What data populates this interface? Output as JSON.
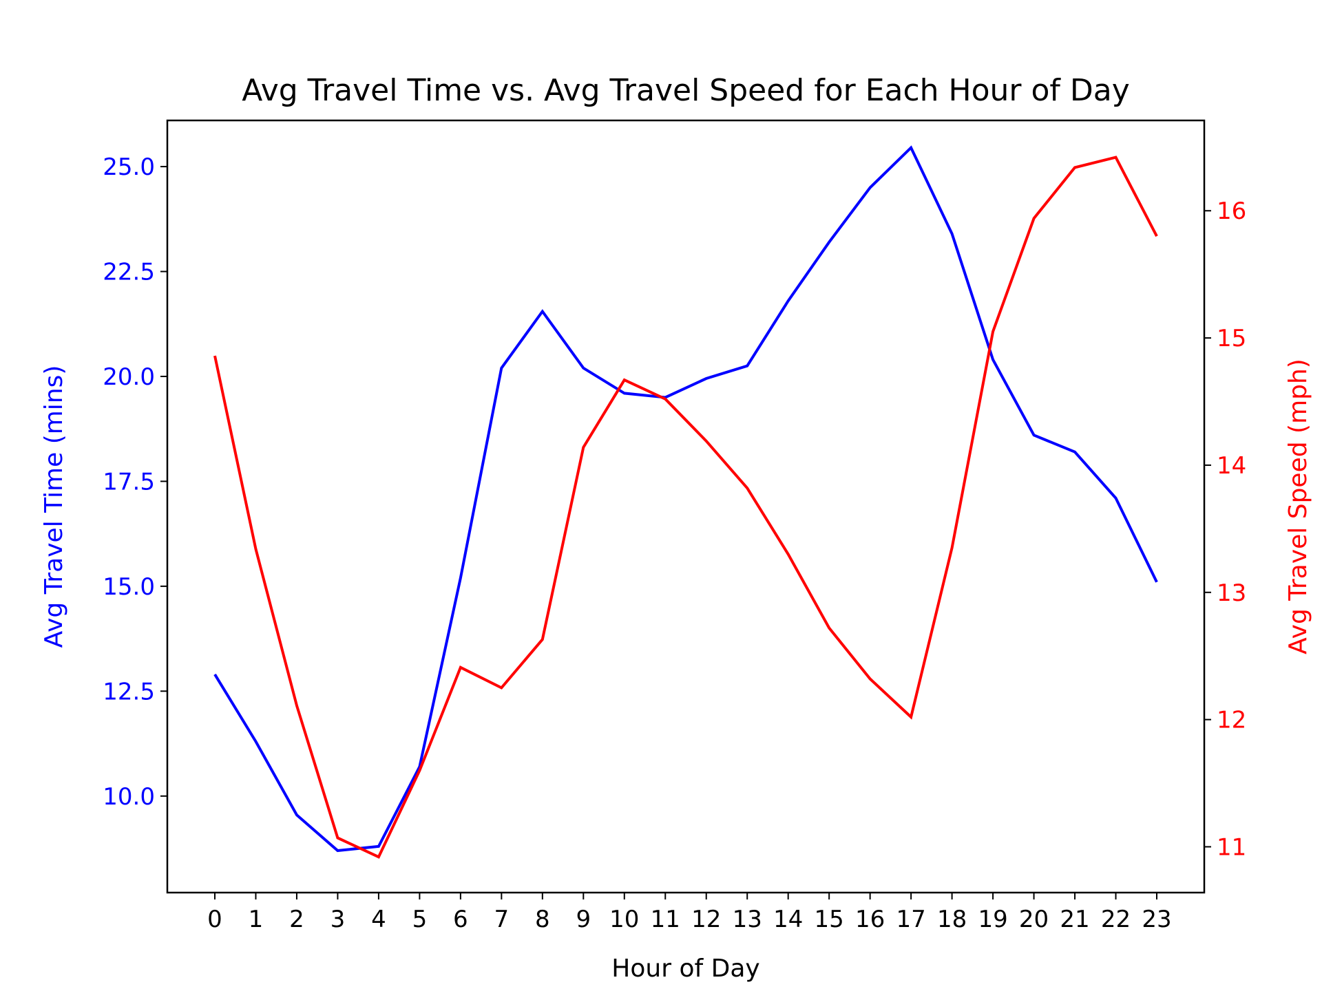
{
  "chart_data": {
    "type": "line",
    "title": "Avg Travel Time vs. Avg Travel Speed for Each Hour of Day",
    "xlabel": "Hour of Day",
    "x": [
      0,
      1,
      2,
      3,
      4,
      5,
      6,
      7,
      8,
      9,
      10,
      11,
      12,
      13,
      14,
      15,
      16,
      17,
      18,
      19,
      20,
      21,
      22,
      23
    ],
    "x_tick_labels": [
      "0",
      "1",
      "2",
      "3",
      "4",
      "5",
      "6",
      "7",
      "8",
      "9",
      "10",
      "11",
      "12",
      "13",
      "14",
      "15",
      "16",
      "17",
      "18",
      "19",
      "20",
      "21",
      "22",
      "23"
    ],
    "grid": false,
    "left_axis": {
      "label": "Avg Travel Time (mins)",
      "color": "#0000ff",
      "ylim": [
        7.7,
        26.1
      ],
      "ticks": [
        10.0,
        12.5,
        15.0,
        17.5,
        20.0,
        22.5,
        25.0
      ],
      "tick_labels": [
        "10.0",
        "12.5",
        "15.0",
        "17.5",
        "20.0",
        "22.5",
        "25.0"
      ]
    },
    "right_axis": {
      "label": "Avg Travel Speed (mph)",
      "color": "#ff0000",
      "ylim": [
        10.64,
        16.71
      ],
      "ticks": [
        11,
        12,
        13,
        14,
        15,
        16
      ],
      "tick_labels": [
        "11",
        "12",
        "13",
        "14",
        "15",
        "16"
      ]
    },
    "series": [
      {
        "axis": "left",
        "color": "#0000ff",
        "values": [
          12.9,
          11.3,
          9.55,
          8.7,
          8.8,
          10.7,
          15.2,
          20.2,
          21.55,
          20.2,
          19.6,
          19.5,
          19.95,
          20.25,
          21.8,
          23.2,
          24.5,
          25.45,
          23.4,
          20.4,
          18.6,
          18.2,
          17.1,
          15.1
        ]
      },
      {
        "axis": "right",
        "color": "#ff0000",
        "values": [
          14.86,
          13.34,
          12.11,
          11.07,
          10.92,
          11.6,
          12.41,
          12.25,
          12.63,
          14.14,
          14.67,
          14.52,
          14.19,
          13.82,
          13.3,
          12.72,
          12.32,
          12.02,
          13.35,
          15.05,
          15.94,
          16.34,
          16.42,
          15.8
        ]
      }
    ]
  }
}
